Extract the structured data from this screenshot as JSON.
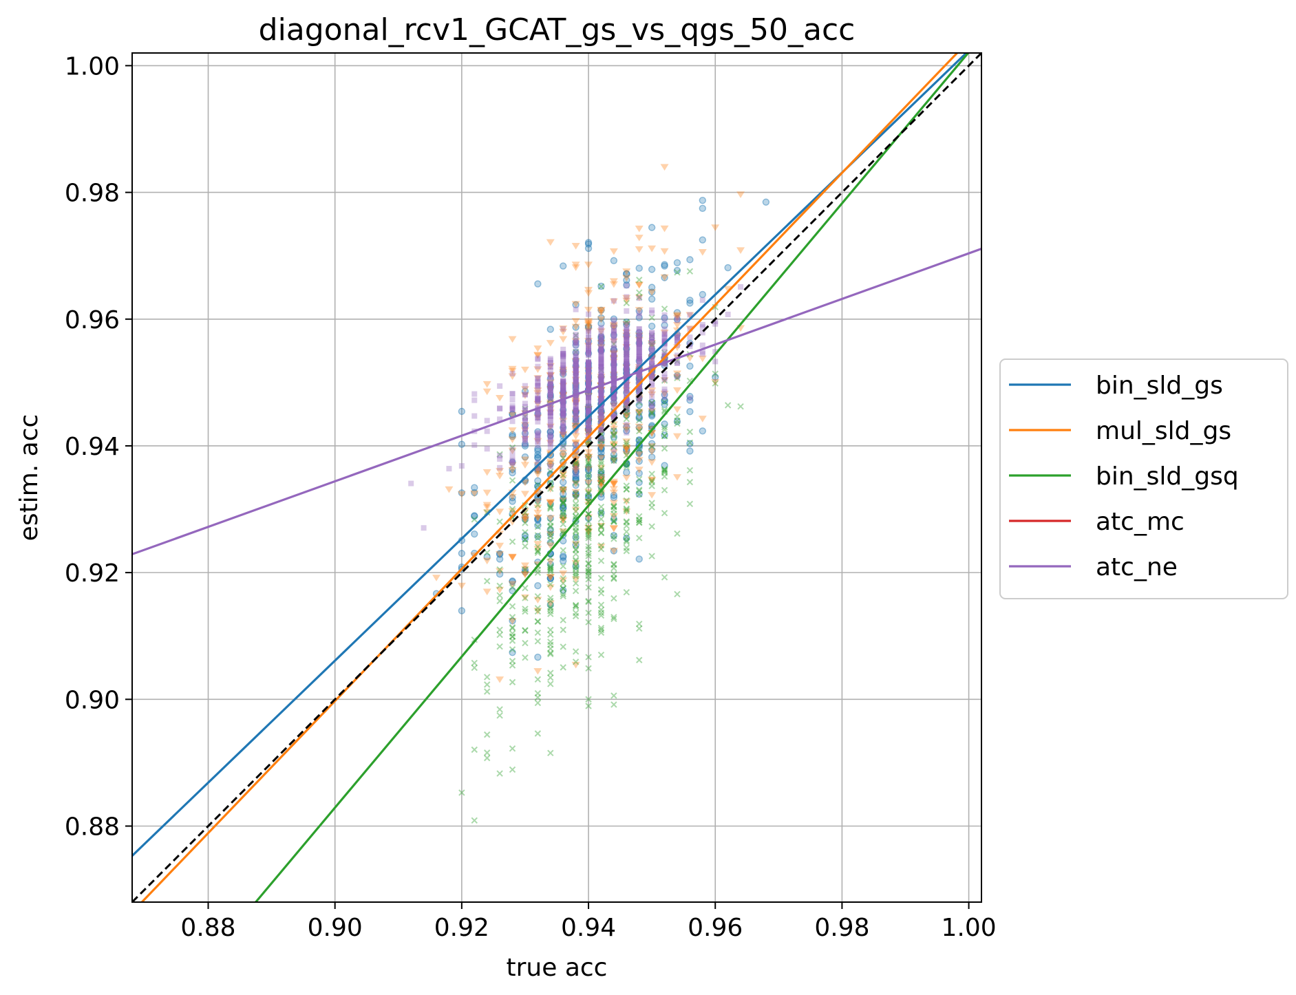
{
  "chart_data": {
    "type": "scatter",
    "title": "diagonal_rcv1_GCAT_gs_vs_qgs_50_acc",
    "xlabel": "true acc",
    "ylabel": "estim. acc",
    "xlim": [
      0.868,
      1.002
    ],
    "ylim": [
      0.868,
      1.002
    ],
    "xticks": [
      0.88,
      0.9,
      0.92,
      0.94,
      0.96,
      0.98,
      1.0
    ],
    "yticks": [
      0.88,
      0.9,
      0.92,
      0.94,
      0.96,
      0.98,
      1.0
    ],
    "xtick_labels": [
      "0.88",
      "0.90",
      "0.92",
      "0.94",
      "0.96",
      "0.98",
      "1.00"
    ],
    "ytick_labels": [
      "0.88",
      "0.90",
      "0.92",
      "0.94",
      "0.96",
      "0.98",
      "1.00"
    ],
    "grid": true,
    "legend_position": "center-right outside",
    "diagonal": {
      "style": "dashed",
      "color": "#000000",
      "points": [
        [
          0.868,
          0.868
        ],
        [
          1.002,
          1.002
        ]
      ]
    },
    "series": [
      {
        "name": "bin_sld_gs",
        "color": "#1f77b4",
        "marker": "circle",
        "scatter": {
          "cx": 0.941,
          "cy": 0.944,
          "sx": 0.0085,
          "sy": 0.0135,
          "n": 420
        },
        "fit_line": [
          [
            0.868,
            0.8753
          ],
          [
            1.002,
            1.0043
          ]
        ]
      },
      {
        "name": "mul_sld_gs",
        "color": "#ff7f0e",
        "marker": "triangle-down",
        "scatter": {
          "cx": 0.94,
          "cy": 0.944,
          "sx": 0.0085,
          "sy": 0.014,
          "n": 420
        },
        "fit_line": [
          [
            0.868,
            0.8664
          ],
          [
            1.002,
            1.006
          ]
        ]
      },
      {
        "name": "bin_sld_gsq",
        "color": "#2ca02c",
        "marker": "x",
        "scatter": {
          "cx": 0.94,
          "cy": 0.928,
          "sx": 0.008,
          "sy": 0.015,
          "n": 460
        },
        "fit_line": [
          [
            0.8875,
            0.868
          ],
          [
            1.002,
            1.0045
          ]
        ]
      },
      {
        "name": "atc_mc",
        "color": "#d62728",
        "marker": "square",
        "scatter": {
          "cx": 0.941,
          "cy": 0.95,
          "sx": 0.007,
          "sy": 0.005,
          "n": 0
        },
        "fit_line": []
      },
      {
        "name": "atc_ne",
        "color": "#9467bd",
        "marker": "square",
        "scatter": {
          "cx": 0.941,
          "cy": 0.95,
          "sx": 0.007,
          "sy": 0.005,
          "n": 900
        },
        "fit_line": [
          [
            0.868,
            0.9229
          ],
          [
            1.002,
            0.9711
          ]
        ]
      }
    ]
  }
}
